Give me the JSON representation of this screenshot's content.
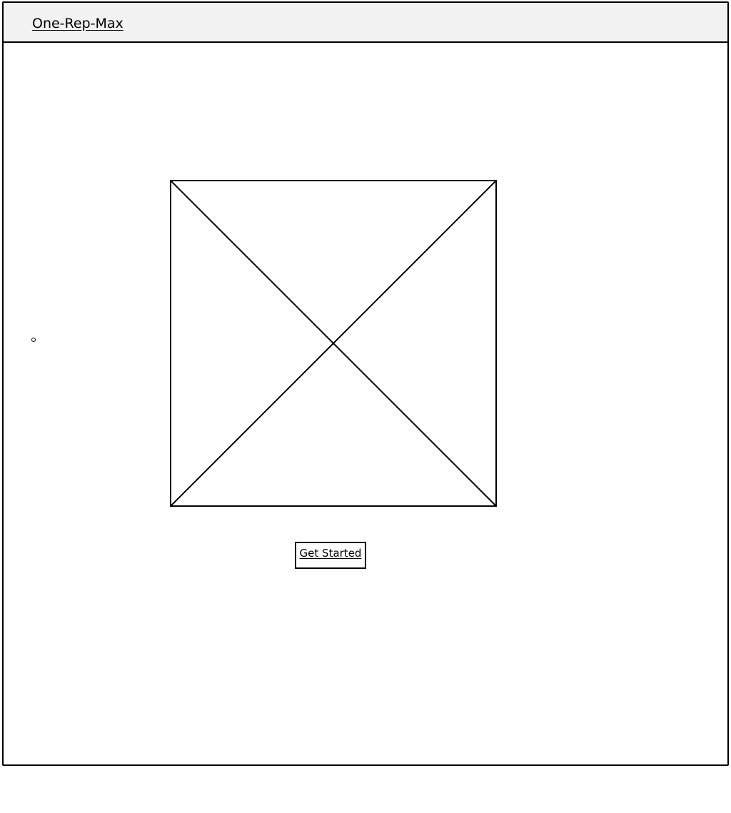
{
  "header": {
    "title": "One-Rep-Max"
  },
  "main": {
    "image_placeholder_icon": "image-placeholder-icon",
    "dot_icon": "radio-dot-icon",
    "cta_label": "Get Started"
  },
  "colors": {
    "stroke": "#000000",
    "header_bg": "#f2f2f2",
    "page_bg": "#ffffff"
  }
}
